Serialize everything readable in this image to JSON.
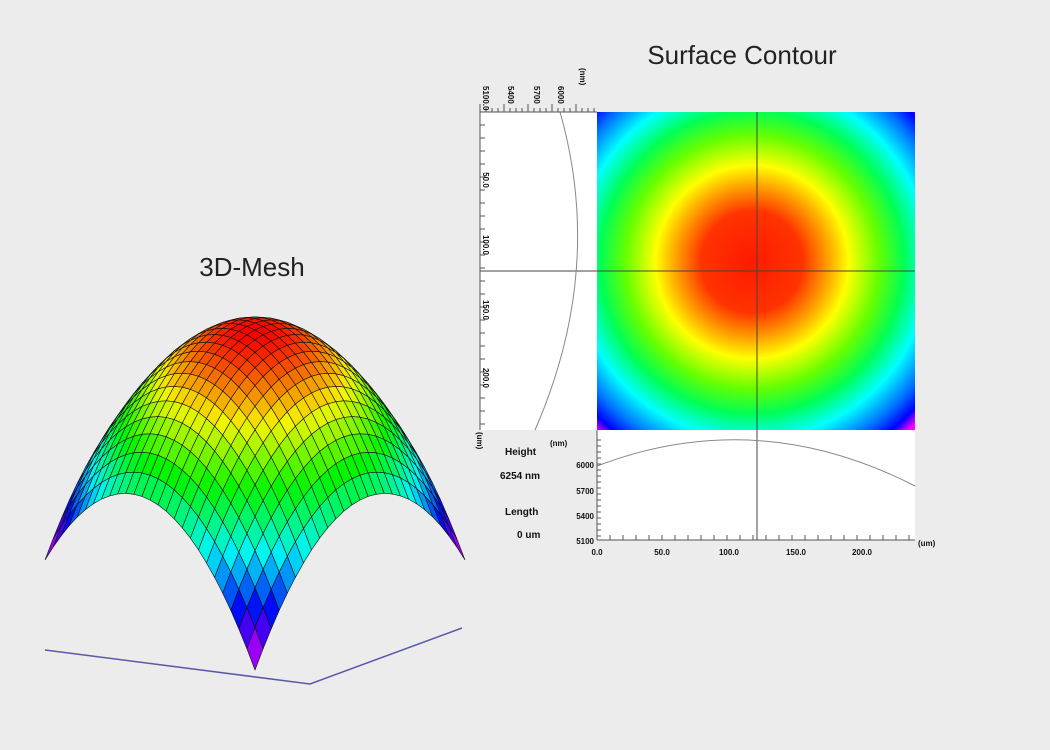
{
  "titles": {
    "mesh": "3D-Mesh",
    "contour": "Surface Contour"
  },
  "side_profile": {
    "unit_top": "(nm)",
    "top_ticks": [
      "5100.0",
      "5400",
      "5700",
      "6000"
    ],
    "left_ticks": [
      "50.0",
      "100.0",
      "150.0",
      "200.0"
    ],
    "unit_left": "(um)"
  },
  "bottom_profile": {
    "y_unit": "(nm)",
    "y_ticks": [
      "6000",
      "5700",
      "5400",
      "5100"
    ],
    "x_ticks": [
      "0.0",
      "50.0",
      "100.0",
      "150.0",
      "200.0"
    ],
    "x_unit": "(um)"
  },
  "readout": {
    "height_label": "Height",
    "height_value": "6254 nm",
    "length_label": "Length",
    "length_value": "0 um"
  }
}
